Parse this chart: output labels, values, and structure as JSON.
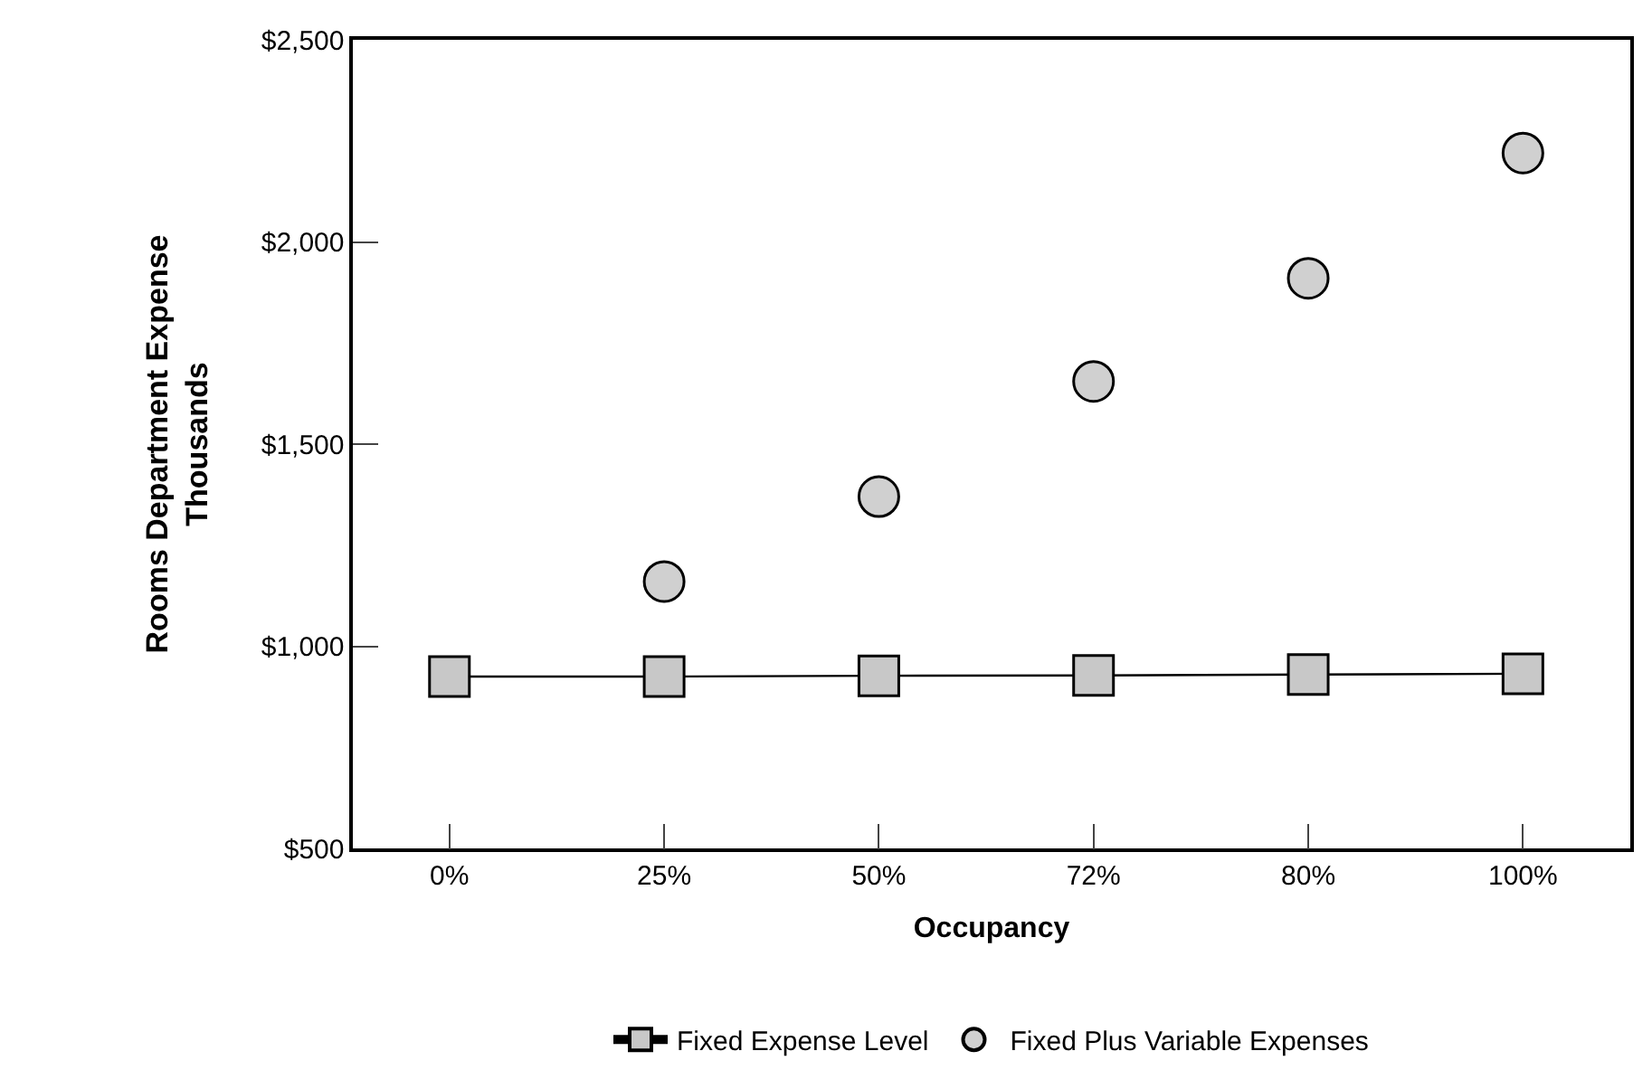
{
  "chart_data": {
    "type": "line",
    "xlabel": "Occupancy",
    "ylabel": "Rooms Department Expense\nThousands",
    "categories": [
      "0%",
      "25%",
      "50%",
      "72%",
      "80%",
      "100%"
    ],
    "series": [
      {
        "name": "Fixed Expense Level",
        "color": "#c8c8c8",
        "marker": "square",
        "values": [
          925,
          925,
          927,
          928,
          930,
          932
        ]
      },
      {
        "name": "Fixed Plus Variable Expenses",
        "color": "#d0d0d0",
        "type": "scatter",
        "marker": "circle",
        "values": [
          null,
          1160,
          1370,
          1655,
          1910,
          2220
        ]
      }
    ],
    "ylim": [
      500,
      2500
    ],
    "yticks": [
      {
        "value": 500,
        "label": "$500"
      },
      {
        "value": 1000,
        "label": "$1,000"
      },
      {
        "value": 1500,
        "label": "$1,500"
      },
      {
        "value": 2000,
        "label": "$2,000"
      },
      {
        "value": 2500,
        "label": "$2,500"
      }
    ],
    "legend": "bottom"
  }
}
